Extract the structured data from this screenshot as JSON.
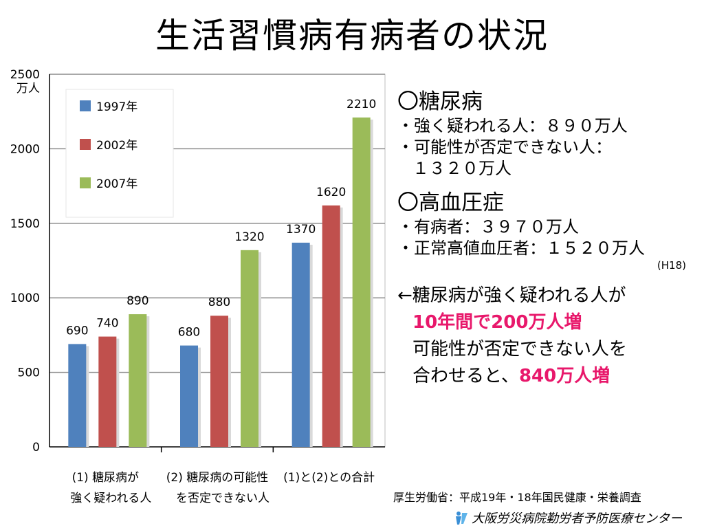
{
  "title": "生活習慣病有病者の状況",
  "chart_data": {
    "type": "bar",
    "categories": [
      [
        "(1) 糖尿病が",
        "強く疑われる人"
      ],
      [
        "(2) 糖尿病の可能性",
        "を否定できない人"
      ],
      [
        "(1)と(2)との合計"
      ]
    ],
    "series": [
      {
        "name": "1997年",
        "values": [
          690,
          680,
          1370
        ]
      },
      {
        "name": "2002年",
        "values": [
          740,
          880,
          1620
        ]
      },
      {
        "name": "2007年",
        "values": [
          890,
          1320,
          2210
        ]
      }
    ],
    "colors": [
      "#4f81bd",
      "#c0504d",
      "#9bbb59"
    ],
    "ylim": [
      0,
      2500
    ],
    "yticks": [
      "0",
      "500",
      "1000",
      "1500",
      "2000",
      "2500"
    ],
    "ylabel": "万人",
    "grid": true,
    "legend_position": "top-left"
  },
  "panel": {
    "diabetes_heading": "〇糖尿病",
    "diabetes_line1": "・強く疑われる人：８９０万人",
    "diabetes_line2": "・可能性が否定できない人：",
    "diabetes_line3": "１３２０万人",
    "hypertension_heading": "〇高血圧症",
    "hypertension_line1": "・有病者：３９７０万人",
    "hypertension_line2": "・正常高値血圧者：１５２０万人",
    "note": "(H18)",
    "summary_line1": "←糖尿病が強く疑われる人が",
    "summary_highlight1": "10年間で200万人増",
    "summary_line2": "可能性が否定できない人を",
    "summary_line3_prefix": "合わせると、",
    "summary_highlight2": "840万人増"
  },
  "source": "厚生労働省：平成19年・18年国民健康・栄養調査",
  "footer": {
    "organization": "大阪労災病院勤労者予防医療センター",
    "logo_icon": "person-logo-icon"
  }
}
